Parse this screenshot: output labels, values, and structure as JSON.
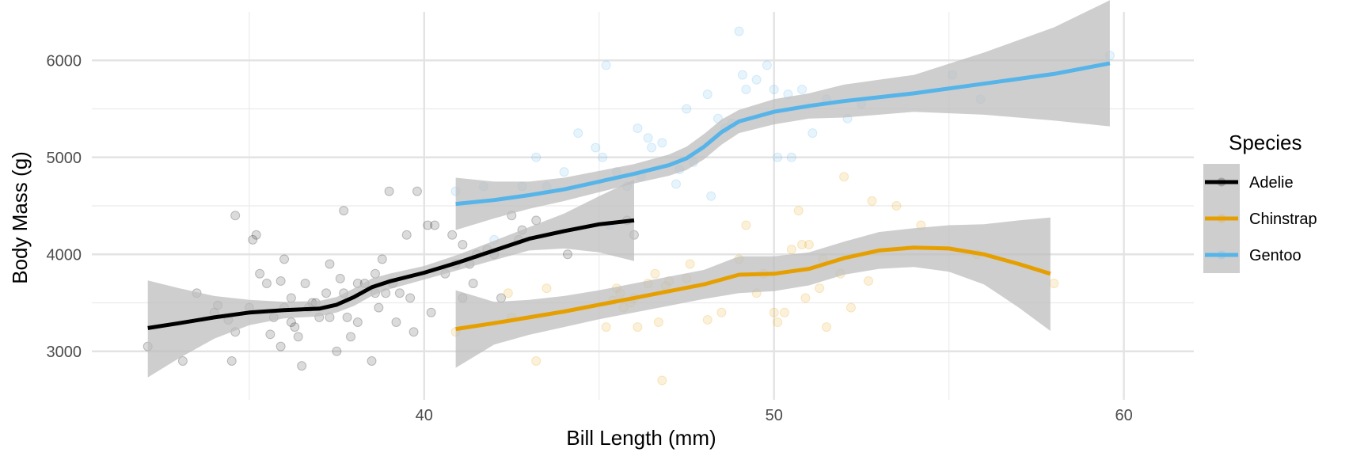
{
  "chart_data": {
    "type": "scatter",
    "xlabel": "Bill Length (mm)",
    "ylabel": "Body Mass (g)",
    "xlim": [
      30.5,
      62
    ],
    "ylim": [
      2500,
      6500
    ],
    "x_ticks": [
      40,
      50,
      60
    ],
    "y_ticks": [
      3000,
      4000,
      5000,
      6000
    ],
    "grid": true,
    "legend": {
      "title": "Species",
      "placement": "right"
    },
    "ribbon_color": "#bdbdbd",
    "series": [
      {
        "name": "Adelie",
        "color": "#000000",
        "points": [
          [
            32.1,
            3050
          ],
          [
            33.1,
            2900
          ],
          [
            33.5,
            3600
          ],
          [
            34.0,
            3400
          ],
          [
            34.1,
            3475
          ],
          [
            34.4,
            3325
          ],
          [
            34.5,
            2900
          ],
          [
            34.6,
            4400
          ],
          [
            34.6,
            3200
          ],
          [
            35.0,
            3450
          ],
          [
            35.1,
            4150
          ],
          [
            35.2,
            4200
          ],
          [
            35.3,
            3800
          ],
          [
            35.5,
            3700
          ],
          [
            35.6,
            3175
          ],
          [
            35.7,
            3350
          ],
          [
            35.9,
            3050
          ],
          [
            35.9,
            3725
          ],
          [
            36.0,
            3450
          ],
          [
            36.0,
            3950
          ],
          [
            36.2,
            3550
          ],
          [
            36.2,
            3300
          ],
          [
            36.3,
            3250
          ],
          [
            36.4,
            3150
          ],
          [
            36.5,
            2850
          ],
          [
            36.6,
            3700
          ],
          [
            36.7,
            3450
          ],
          [
            36.8,
            3500
          ],
          [
            36.9,
            3500
          ],
          [
            37.0,
            3350
          ],
          [
            37.2,
            3600
          ],
          [
            37.3,
            3900
          ],
          [
            37.3,
            3350
          ],
          [
            37.5,
            3000
          ],
          [
            37.6,
            3750
          ],
          [
            37.7,
            4450
          ],
          [
            37.7,
            3600
          ],
          [
            37.8,
            3350
          ],
          [
            37.9,
            3150
          ],
          [
            38.1,
            3700
          ],
          [
            38.1,
            3300
          ],
          [
            38.3,
            3700
          ],
          [
            38.5,
            2900
          ],
          [
            38.6,
            3800
          ],
          [
            38.6,
            3600
          ],
          [
            38.7,
            3450
          ],
          [
            38.8,
            3950
          ],
          [
            38.9,
            3600
          ],
          [
            39.0,
            4650
          ],
          [
            39.1,
            3700
          ],
          [
            39.2,
            3300
          ],
          [
            39.3,
            3600
          ],
          [
            39.5,
            4200
          ],
          [
            39.6,
            3550
          ],
          [
            39.7,
            3200
          ],
          [
            39.8,
            4650
          ],
          [
            40.1,
            4300
          ],
          [
            40.2,
            3400
          ],
          [
            40.3,
            4300
          ],
          [
            40.6,
            3800
          ],
          [
            40.8,
            4200
          ],
          [
            40.9,
            3900
          ],
          [
            41.1,
            3550
          ],
          [
            41.1,
            4100
          ],
          [
            41.3,
            3900
          ],
          [
            41.4,
            3700
          ],
          [
            41.5,
            4000
          ],
          [
            41.8,
            4050
          ],
          [
            42.0,
            4000
          ],
          [
            42.2,
            3550
          ],
          [
            42.5,
            4400
          ],
          [
            42.7,
            4150
          ],
          [
            42.8,
            4250
          ],
          [
            43.2,
            4350
          ],
          [
            44.1,
            4000
          ],
          [
            45.8,
            4350
          ],
          [
            46.0,
            4200
          ]
        ]
      },
      {
        "name": "Chinstrap",
        "color": "#E69F00",
        "points": [
          [
            40.9,
            3200
          ],
          [
            42.4,
            3600
          ],
          [
            42.5,
            3350
          ],
          [
            43.2,
            2900
          ],
          [
            43.5,
            3650
          ],
          [
            45.2,
            3250
          ],
          [
            45.4,
            3525
          ],
          [
            45.5,
            3650
          ],
          [
            45.6,
            3600
          ],
          [
            45.7,
            3450
          ],
          [
            45.9,
            3500
          ],
          [
            46.0,
            3550
          ],
          [
            46.1,
            3250
          ],
          [
            46.4,
            3700
          ],
          [
            46.6,
            3800
          ],
          [
            46.7,
            3300
          ],
          [
            46.8,
            2700
          ],
          [
            46.9,
            3675
          ],
          [
            47.0,
            3725
          ],
          [
            47.5,
            3750
          ],
          [
            47.6,
            3900
          ],
          [
            48.1,
            3325
          ],
          [
            48.5,
            3400
          ],
          [
            49.0,
            3950
          ],
          [
            49.2,
            4300
          ],
          [
            49.5,
            3600
          ],
          [
            49.7,
            3800
          ],
          [
            50.0,
            3400
          ],
          [
            50.1,
            3300
          ],
          [
            50.3,
            3400
          ],
          [
            50.5,
            4050
          ],
          [
            50.7,
            4450
          ],
          [
            50.8,
            4100
          ],
          [
            50.9,
            3550
          ],
          [
            51.0,
            4100
          ],
          [
            51.3,
            3650
          ],
          [
            51.4,
            3950
          ],
          [
            51.5,
            3250
          ],
          [
            51.9,
            3800
          ],
          [
            52.0,
            4800
          ],
          [
            52.2,
            3450
          ],
          [
            52.7,
            3725
          ],
          [
            52.8,
            4550
          ],
          [
            53.5,
            4500
          ],
          [
            54.2,
            4300
          ],
          [
            55.8,
            4000
          ],
          [
            58.0,
            3700
          ]
        ]
      },
      {
        "name": "Gentoo",
        "color": "#56B4E9",
        "points": [
          [
            40.9,
            4650
          ],
          [
            41.7,
            4700
          ],
          [
            42.0,
            4150
          ],
          [
            42.8,
            4700
          ],
          [
            43.2,
            5000
          ],
          [
            43.5,
            4700
          ],
          [
            44.0,
            4850
          ],
          [
            44.4,
            5250
          ],
          [
            44.9,
            5100
          ],
          [
            45.1,
            5000
          ],
          [
            45.2,
            5950
          ],
          [
            45.3,
            4300
          ],
          [
            45.5,
            4850
          ],
          [
            45.8,
            4700
          ],
          [
            46.1,
            5300
          ],
          [
            46.2,
            4800
          ],
          [
            46.4,
            5200
          ],
          [
            46.5,
            5100
          ],
          [
            46.8,
            5150
          ],
          [
            47.2,
            4725
          ],
          [
            47.3,
            4875
          ],
          [
            47.5,
            5500
          ],
          [
            47.7,
            4950
          ],
          [
            48.1,
            5650
          ],
          [
            48.2,
            4600
          ],
          [
            48.4,
            5400
          ],
          [
            48.6,
            5300
          ],
          [
            48.8,
            5350
          ],
          [
            49.0,
            6300
          ],
          [
            49.1,
            5850
          ],
          [
            49.2,
            5700
          ],
          [
            49.5,
            5800
          ],
          [
            49.8,
            5950
          ],
          [
            50.0,
            5700
          ],
          [
            50.1,
            5000
          ],
          [
            50.4,
            5650
          ],
          [
            50.5,
            5000
          ],
          [
            50.8,
            5700
          ],
          [
            51.1,
            5250
          ],
          [
            51.5,
            5600
          ],
          [
            52.1,
            5400
          ],
          [
            52.5,
            5550
          ],
          [
            55.1,
            5850
          ],
          [
            55.9,
            5600
          ],
          [
            59.6,
            6050
          ]
        ]
      }
    ],
    "trend": [
      {
        "name": "Adelie",
        "points": [
          [
            32.1,
            3240
          ],
          [
            33.0,
            3290
          ],
          [
            34.0,
            3350
          ],
          [
            35.0,
            3400
          ],
          [
            36.0,
            3425
          ],
          [
            37.0,
            3440
          ],
          [
            37.5,
            3480
          ],
          [
            38.0,
            3560
          ],
          [
            38.5,
            3660
          ],
          [
            39.0,
            3720
          ],
          [
            40.0,
            3810
          ],
          [
            41.0,
            3920
          ],
          [
            42.0,
            4040
          ],
          [
            43.0,
            4160
          ],
          [
            44.0,
            4240
          ],
          [
            45.0,
            4310
          ],
          [
            46.0,
            4350
          ]
        ],
        "lower": [
          2730,
          2930,
          3130,
          3270,
          3340,
          3360,
          3400,
          3470,
          3570,
          3640,
          3740,
          3840,
          3940,
          4040,
          4060,
          4020,
          3930
        ],
        "upper": [
          3730,
          3650,
          3570,
          3530,
          3510,
          3520,
          3560,
          3650,
          3750,
          3800,
          3880,
          4000,
          4140,
          4280,
          4420,
          4600,
          4770
        ]
      },
      {
        "name": "Chinstrap",
        "points": [
          [
            40.9,
            3230
          ],
          [
            42.0,
            3290
          ],
          [
            43.0,
            3350
          ],
          [
            44.0,
            3410
          ],
          [
            45.0,
            3480
          ],
          [
            46.0,
            3550
          ],
          [
            47.0,
            3620
          ],
          [
            48.0,
            3690
          ],
          [
            49.0,
            3790
          ],
          [
            50.0,
            3800
          ],
          [
            51.0,
            3850
          ],
          [
            52.0,
            3960
          ],
          [
            53.0,
            4040
          ],
          [
            54.0,
            4070
          ],
          [
            55.0,
            4060
          ],
          [
            56.0,
            4000
          ],
          [
            57.0,
            3900
          ],
          [
            57.9,
            3800
          ]
        ],
        "lower": [
          2830,
          3070,
          3170,
          3250,
          3330,
          3400,
          3470,
          3540,
          3600,
          3620,
          3680,
          3790,
          3850,
          3870,
          3820,
          3690,
          3450,
          3210
        ],
        "upper": [
          3630,
          3510,
          3530,
          3570,
          3630,
          3700,
          3770,
          3840,
          3980,
          3980,
          4020,
          4130,
          4230,
          4270,
          4300,
          4310,
          4350,
          4380
        ]
      },
      {
        "name": "Gentoo",
        "points": [
          [
            40.9,
            4520
          ],
          [
            42.0,
            4560
          ],
          [
            43.0,
            4610
          ],
          [
            44.0,
            4670
          ],
          [
            45.0,
            4750
          ],
          [
            46.0,
            4830
          ],
          [
            47.0,
            4920
          ],
          [
            47.5,
            4990
          ],
          [
            48.0,
            5110
          ],
          [
            48.5,
            5260
          ],
          [
            49.0,
            5370
          ],
          [
            50.0,
            5470
          ],
          [
            51.0,
            5530
          ],
          [
            52.0,
            5580
          ],
          [
            54.0,
            5660
          ],
          [
            56.0,
            5760
          ],
          [
            58.0,
            5860
          ],
          [
            59.6,
            5970
          ]
        ],
        "lower": [
          4250,
          4370,
          4470,
          4550,
          4640,
          4730,
          4810,
          4870,
          4980,
          5130,
          5250,
          5340,
          5400,
          5410,
          5470,
          5440,
          5380,
          5320
        ],
        "upper": [
          4790,
          4750,
          4750,
          4790,
          4860,
          4930,
          5030,
          5110,
          5240,
          5390,
          5490,
          5600,
          5660,
          5750,
          5850,
          6080,
          6340,
          6620
        ]
      }
    ]
  }
}
